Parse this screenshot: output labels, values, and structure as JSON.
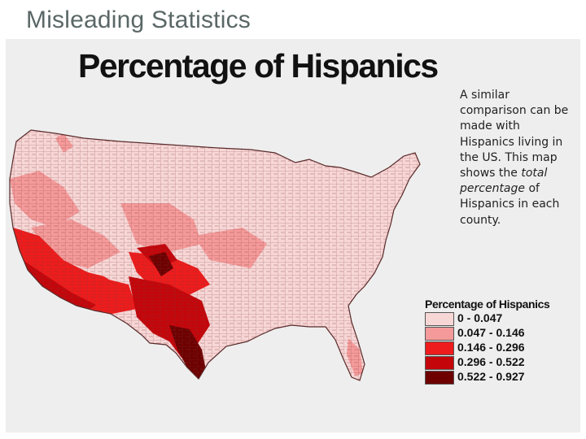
{
  "slide": {
    "title": "Misleading Statistics"
  },
  "map": {
    "title": "Percentage of Hispanics",
    "palette": [
      "#f7d6d6",
      "#f59a9a",
      "#ee1c1c",
      "#c4060b",
      "#6e0000"
    ]
  },
  "caption": {
    "line1": "A similar comparison can be made with Hispanics living in the US. This map shows the ",
    "emphasis": "total percentage",
    "line2": " of Hispanics in each county."
  },
  "legend": {
    "title": "Percentage of Hispanics",
    "items": [
      {
        "label": "0 - 0.047",
        "color": "#f7d6d6"
      },
      {
        "label": "0.047 - 0.146",
        "color": "#f59a9a"
      },
      {
        "label": "0.146 - 0.296",
        "color": "#ee1c1c"
      },
      {
        "label": "0.296 - 0.522",
        "color": "#c4060b"
      },
      {
        "label": "0.522 - 0.927",
        "color": "#6e0000"
      }
    ]
  }
}
